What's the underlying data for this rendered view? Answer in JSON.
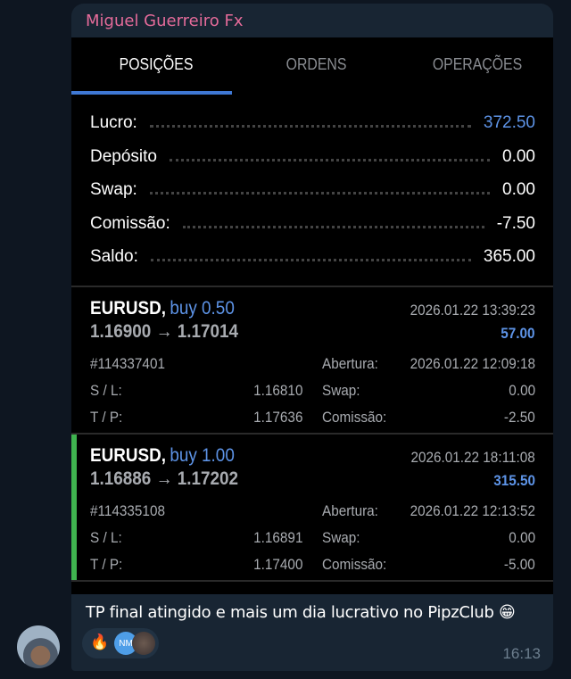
{
  "message": {
    "sender": "Miguel Guerreiro Fx",
    "caption": "TP final atingido e mais um dia lucrativo no PipzClub 😁",
    "time": "16:13",
    "reactions": [
      {
        "emoji": "🔥"
      },
      {
        "initials": "NM"
      }
    ]
  },
  "tabs": [
    {
      "label": "POSIÇÕES",
      "active": true
    },
    {
      "label": "ORDENS"
    },
    {
      "label": "OPERAÇÕES"
    }
  ],
  "summary": [
    {
      "label": "Lucro:",
      "value": "372.50",
      "highlight": true
    },
    {
      "label": "Depósito",
      "value": "0.00"
    },
    {
      "label": "Swap:",
      "value": "0.00"
    },
    {
      "label": "Comissão:",
      "value": "-7.50"
    },
    {
      "label": "Saldo:",
      "value": "365.00"
    }
  ],
  "positions": [
    {
      "symbol": "EURUSD,",
      "side": "buy 0.50",
      "prices": "1.16900 → 1.17014",
      "time": "2026.01.22 13:39:23",
      "profit": "57.00",
      "ticket": "#114337401",
      "open_label": "Abertura:",
      "open_time": "2026.01.22 12:09:18",
      "sl_label": "S / L:",
      "sl": "1.16810",
      "swap_label": "Swap:",
      "swap": "0.00",
      "tp_label": "T / P:",
      "tp": "1.17636",
      "comm_label": "Comissão:",
      "comm": "-2.50",
      "selected": false
    },
    {
      "symbol": "EURUSD,",
      "side": "buy 1.00",
      "prices": "1.16886 → 1.17202",
      "time": "2026.01.22 18:11:08",
      "profit": "315.50",
      "ticket": "#114335108",
      "open_label": "Abertura:",
      "open_time": "2026.01.22 12:13:52",
      "sl_label": "S / L:",
      "sl": "1.16891",
      "swap_label": "Swap:",
      "swap": "0.00",
      "tp_label": "T / P:",
      "tp": "1.17400",
      "comm_label": "Comissão:",
      "comm": "-5.00",
      "selected": true
    }
  ],
  "colors": {
    "accent": "#3f78d4",
    "profit": "#5d93e6",
    "sender": "#e56b9a",
    "selected_bar": "#3fb34f"
  }
}
